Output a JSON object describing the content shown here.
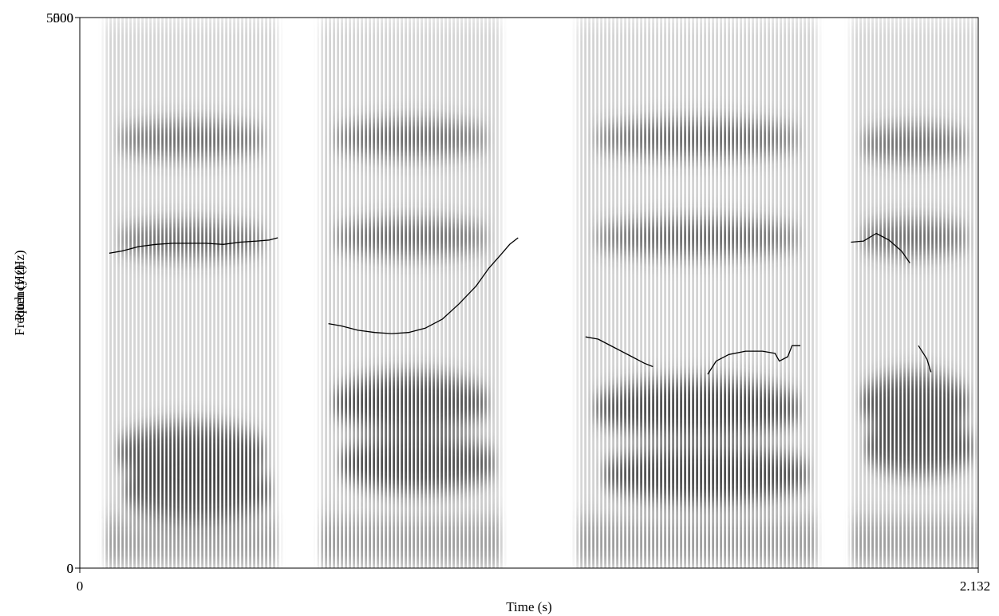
{
  "chart_data": {
    "type": "heatmap",
    "title": "",
    "xlabel": "Time (s)",
    "ylabel_overlap": [
      "Frequency (Hz)",
      "Pitch (Hz)"
    ],
    "x_range": [
      0,
      2.132
    ],
    "y_range": [
      0,
      5000
    ],
    "y_range_pitch": [
      0,
      500
    ],
    "x_tick_labels": [
      "0",
      "2.132"
    ],
    "y_tick_labels_bottom": [
      "0",
      "0"
    ],
    "y_tick_labels_top": [
      "5000",
      "500"
    ],
    "grid": false,
    "legend": "none",
    "spectrogram_segments": [
      {
        "t_start": 0.06,
        "t_end": 0.47,
        "formants_hz": [
          700,
          1050,
          2980,
          3890
        ]
      },
      {
        "t_start": 0.57,
        "t_end": 1.0,
        "formants_hz": [
          950,
          1500,
          3000,
          3900
        ]
      },
      {
        "t_start": 1.18,
        "t_end": 1.75,
        "formants_hz": [
          850,
          1450,
          3000,
          3900
        ]
      },
      {
        "t_start": 1.83,
        "t_end": 2.132,
        "formants_hz": [
          1100,
          1500,
          3000,
          3850
        ]
      }
    ],
    "pitch_series": [
      {
        "name": "",
        "points": [
          [
            0.07,
            286
          ],
          [
            0.1,
            288
          ],
          [
            0.14,
            292
          ],
          [
            0.18,
            294
          ],
          [
            0.22,
            295
          ],
          [
            0.26,
            295
          ],
          [
            0.3,
            295
          ],
          [
            0.34,
            294
          ],
          [
            0.38,
            296
          ],
          [
            0.42,
            297
          ],
          [
            0.45,
            298
          ],
          [
            0.47,
            300
          ]
        ]
      },
      {
        "name": "",
        "points": [
          [
            0.59,
            222
          ],
          [
            0.62,
            220
          ],
          [
            0.66,
            216
          ],
          [
            0.7,
            214
          ],
          [
            0.74,
            213
          ],
          [
            0.78,
            214
          ],
          [
            0.82,
            218
          ],
          [
            0.86,
            226
          ],
          [
            0.9,
            240
          ],
          [
            0.94,
            256
          ],
          [
            0.97,
            272
          ],
          [
            1.0,
            285
          ],
          [
            1.02,
            294
          ],
          [
            1.04,
            300
          ]
        ]
      },
      {
        "name": "",
        "points": [
          [
            1.2,
            210
          ],
          [
            1.23,
            208
          ],
          [
            1.27,
            200
          ],
          [
            1.31,
            192
          ],
          [
            1.34,
            186
          ],
          [
            1.36,
            183
          ]
        ]
      },
      {
        "name": "",
        "points": [
          [
            1.49,
            176
          ],
          [
            1.51,
            188
          ],
          [
            1.54,
            194
          ],
          [
            1.58,
            197
          ],
          [
            1.62,
            197
          ],
          [
            1.65,
            195
          ],
          [
            1.66,
            188
          ],
          [
            1.68,
            192
          ],
          [
            1.69,
            202
          ],
          [
            1.71,
            202
          ]
        ]
      },
      {
        "name": "",
        "points": [
          [
            1.83,
            296
          ],
          [
            1.86,
            297
          ],
          [
            1.89,
            304
          ],
          [
            1.92,
            298
          ],
          [
            1.95,
            288
          ],
          [
            1.97,
            277
          ]
        ]
      },
      {
        "name": "",
        "points": [
          [
            1.99,
            202
          ],
          [
            2.01,
            190
          ],
          [
            2.02,
            178
          ]
        ]
      }
    ]
  },
  "colors": {
    "ink": "#000000",
    "background": "#ffffff",
    "spectrogram": "#3a3a3a"
  }
}
